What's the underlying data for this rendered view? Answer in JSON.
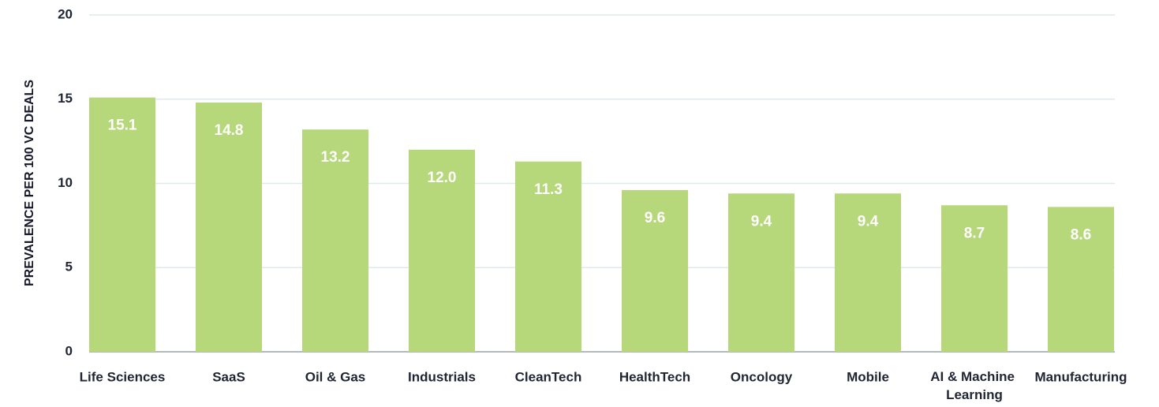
{
  "chart_data": {
    "type": "bar",
    "y_label": "PREVALENCE PER 100 VC DEALS",
    "categories": [
      "Life Sciences",
      "SaaS",
      "Oil & Gas",
      "Industrials",
      "CleanTech",
      "HealthTech",
      "Oncology",
      "Mobile",
      "AI & Machine Learning",
      "Manufacturing"
    ],
    "values": [
      15.1,
      14.8,
      13.2,
      12.0,
      11.3,
      9.6,
      9.4,
      9.4,
      8.7,
      8.6
    ],
    "value_labels": [
      "15.1",
      "14.8",
      "13.2",
      "12.0",
      "11.3",
      "9.6",
      "9.4",
      "9.4",
      "8.7",
      "8.6"
    ],
    "color": "#b6d77a",
    "ylim": [
      0,
      20
    ],
    "yticks": [
      0,
      5,
      10,
      15,
      20
    ],
    "grid": true
  }
}
